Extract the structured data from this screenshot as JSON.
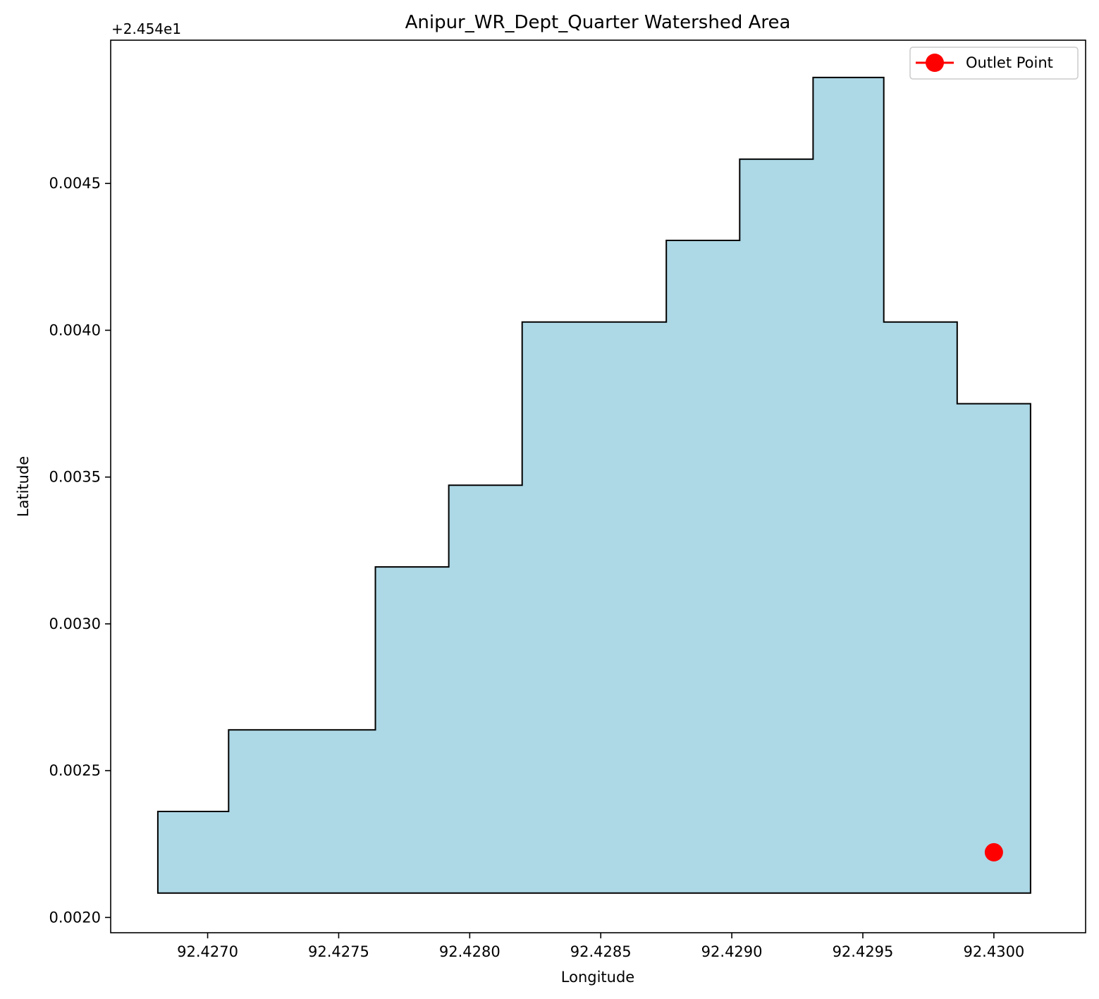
{
  "chart_data": {
    "type": "area",
    "title": "Anipur_WR_Dept_Quarter Watershed Area",
    "xlabel": "Longitude",
    "ylabel": "Latitude",
    "y_offset_label": "+2.454e1",
    "xlim": [
      92.42663,
      92.43035
    ],
    "ylim": [
      0.001948,
      0.004988
    ],
    "x_ticks": [
      92.427,
      92.4275,
      92.428,
      92.4285,
      92.429,
      92.4295,
      92.43
    ],
    "x_tick_labels": [
      "92.4270",
      "92.4275",
      "92.4280",
      "92.4285",
      "92.4290",
      "92.4295",
      "92.4300"
    ],
    "y_ticks": [
      0.002,
      0.0025,
      0.003,
      0.0035,
      0.004,
      0.0045
    ],
    "y_tick_labels": [
      "0.0020",
      "0.0025",
      "0.0030",
      "0.0035",
      "0.0040",
      "0.0045"
    ],
    "grid": false,
    "legend_position": "top-right",
    "legend": [
      {
        "label": "Outlet Point",
        "color": "#ff0000",
        "marker": "circle"
      }
    ],
    "watershed": {
      "fill": "#add8e6",
      "edge": "#000000",
      "polygon": [
        [
          92.42681,
          0.002083
        ],
        [
          92.42681,
          0.002361
        ],
        [
          92.42708,
          0.002361
        ],
        [
          92.42708,
          0.002639
        ],
        [
          92.42764,
          0.002639
        ],
        [
          92.42764,
          0.003194
        ],
        [
          92.42792,
          0.003194
        ],
        [
          92.42792,
          0.003472
        ],
        [
          92.4282,
          0.003472
        ],
        [
          92.4282,
          0.004028
        ],
        [
          92.42875,
          0.004028
        ],
        [
          92.42875,
          0.004306
        ],
        [
          92.42903,
          0.004306
        ],
        [
          92.42903,
          0.004583
        ],
        [
          92.42931,
          0.004583
        ],
        [
          92.42931,
          0.004861
        ],
        [
          92.42958,
          0.004861
        ],
        [
          92.42958,
          0.004028
        ],
        [
          92.42986,
          0.004028
        ],
        [
          92.42986,
          0.00375
        ],
        [
          92.43014,
          0.00375
        ],
        [
          92.43014,
          0.002083
        ]
      ]
    },
    "outlet_point": {
      "x": 92.43,
      "y": 0.002222,
      "color": "#ff0000"
    }
  }
}
